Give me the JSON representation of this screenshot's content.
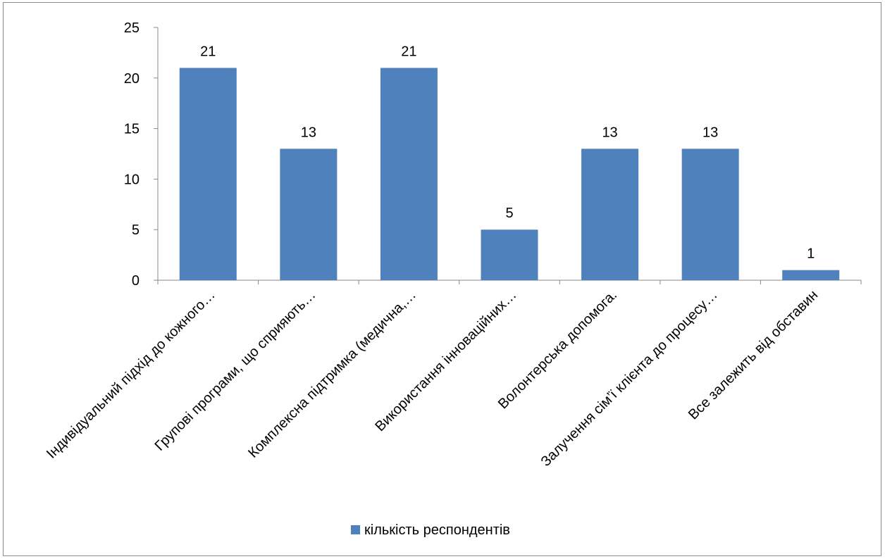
{
  "chart_data": {
    "type": "bar",
    "categories": [
      "Індивідуальний підхід до кожного…",
      "Групові програми, що сприяють…",
      "Комплексна підтримка (медична,…",
      "Використання інноваційних…",
      "Волонтерська допомога.",
      "Залучення сім’ї клієнта до процесу…",
      "Все залежить від обставин"
    ],
    "series": [
      {
        "name": "кількість респондентів",
        "values": [
          21,
          13,
          21,
          5,
          13,
          13,
          1
        ],
        "color": "#4f81bd"
      }
    ],
    "y_ticks": [
      "0",
      "5",
      "10",
      "15",
      "20",
      "25"
    ],
    "ylim": [
      0,
      25
    ],
    "data_labels": true,
    "grid": false,
    "legend": "bottom",
    "title": "",
    "xlabel": "",
    "ylabel": ""
  }
}
